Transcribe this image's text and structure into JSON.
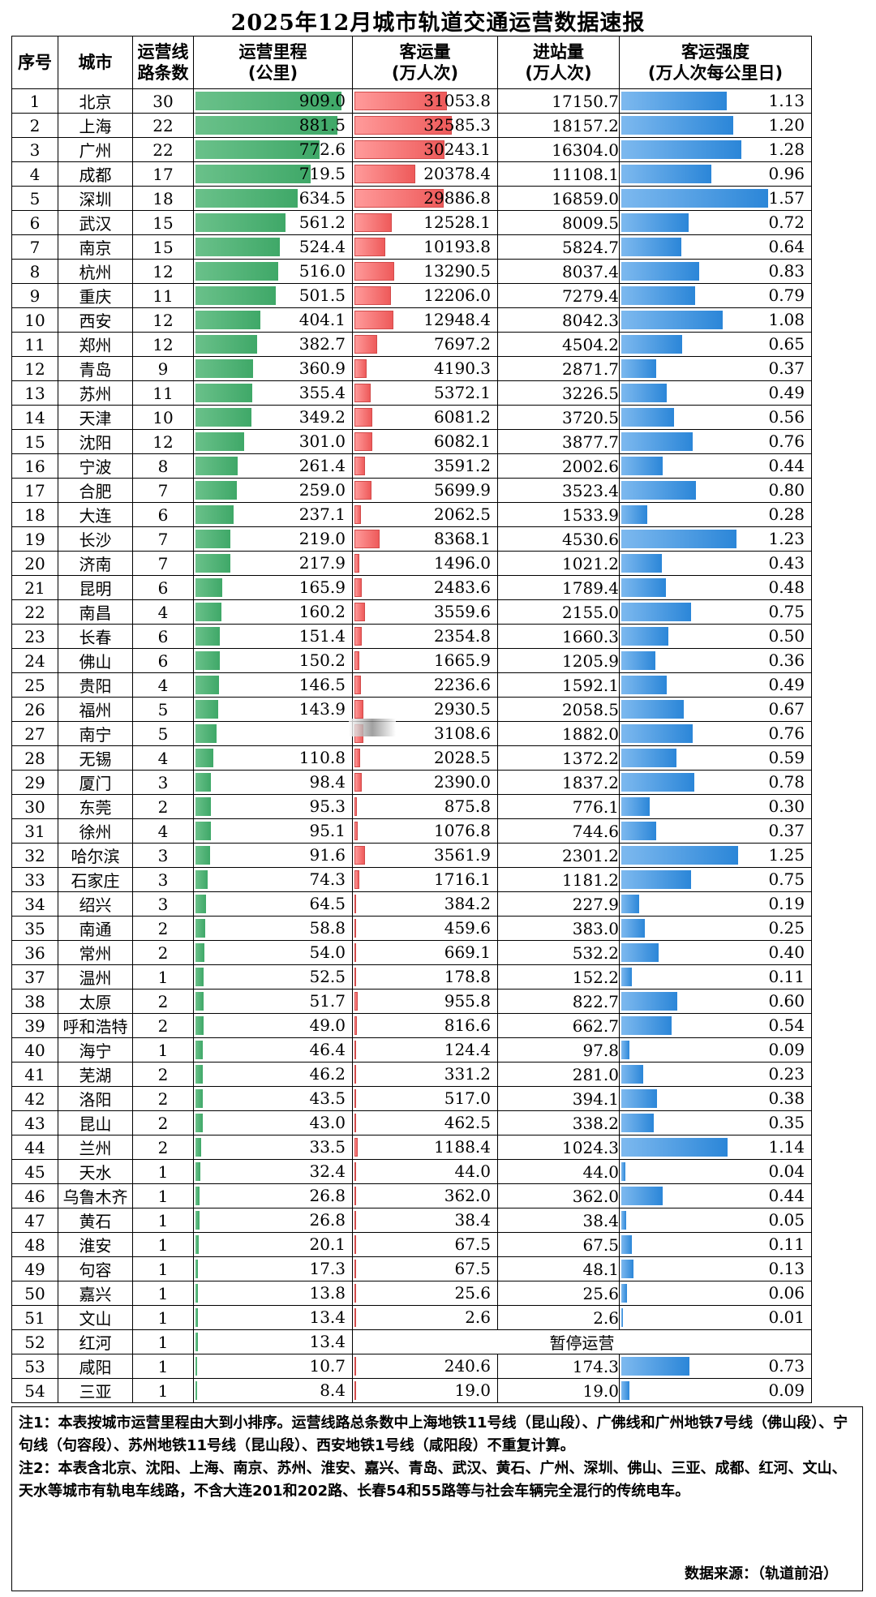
{
  "title": "2025年12月城市轨道交通运营数据速报",
  "headers": {
    "idx": "序号",
    "city": "城市",
    "lines_1": "运营线",
    "lines_2": "路条数",
    "mileage_1": "运营里程",
    "mileage_2": "(公里)",
    "ridership_1": "客运量",
    "ridership_2": "(万人次)",
    "entries_1": "进站量",
    "entries_2": "(万人次)",
    "intensity_1": "客运强度",
    "intensity_2": "(万人次每公里日)"
  },
  "suspended_text": "暂停运营",
  "colors": {
    "mileage_bar": "#4cae6f",
    "ridership_bar": "#ee5a5a",
    "intensity_bar": "#2b86d8"
  },
  "rows": [
    {
      "idx": "1",
      "city": "北京",
      "lines": "30",
      "mileage": "909.0",
      "ridership": "31053.8",
      "entries": "17150.7",
      "intensity": "1.13"
    },
    {
      "idx": "2",
      "city": "上海",
      "lines": "22",
      "mileage": "881.5",
      "ridership": "32585.3",
      "entries": "18157.2",
      "intensity": "1.20"
    },
    {
      "idx": "3",
      "city": "广州",
      "lines": "22",
      "mileage": "772.6",
      "ridership": "30243.1",
      "entries": "16304.0",
      "intensity": "1.28"
    },
    {
      "idx": "4",
      "city": "成都",
      "lines": "17",
      "mileage": "719.5",
      "ridership": "20378.4",
      "entries": "11108.1",
      "intensity": "0.96"
    },
    {
      "idx": "5",
      "city": "深圳",
      "lines": "18",
      "mileage": "634.5",
      "ridership": "29886.8",
      "entries": "16859.0",
      "intensity": "1.57"
    },
    {
      "idx": "6",
      "city": "武汉",
      "lines": "15",
      "mileage": "561.2",
      "ridership": "12528.1",
      "entries": "8009.5",
      "intensity": "0.72"
    },
    {
      "idx": "7",
      "city": "南京",
      "lines": "15",
      "mileage": "524.4",
      "ridership": "10193.8",
      "entries": "5824.7",
      "intensity": "0.64"
    },
    {
      "idx": "8",
      "city": "杭州",
      "lines": "12",
      "mileage": "516.0",
      "ridership": "13290.5",
      "entries": "8037.4",
      "intensity": "0.83"
    },
    {
      "idx": "9",
      "city": "重庆",
      "lines": "11",
      "mileage": "501.5",
      "ridership": "12206.0",
      "entries": "7279.4",
      "intensity": "0.79"
    },
    {
      "idx": "10",
      "city": "西安",
      "lines": "12",
      "mileage": "404.1",
      "ridership": "12948.4",
      "entries": "8042.3",
      "intensity": "1.08"
    },
    {
      "idx": "11",
      "city": "郑州",
      "lines": "12",
      "mileage": "382.7",
      "ridership": "7697.2",
      "entries": "4504.2",
      "intensity": "0.65"
    },
    {
      "idx": "12",
      "city": "青岛",
      "lines": "9",
      "mileage": "360.9",
      "ridership": "4190.3",
      "entries": "2871.7",
      "intensity": "0.37"
    },
    {
      "idx": "13",
      "city": "苏州",
      "lines": "11",
      "mileage": "355.4",
      "ridership": "5372.1",
      "entries": "3226.5",
      "intensity": "0.49"
    },
    {
      "idx": "14",
      "city": "天津",
      "lines": "10",
      "mileage": "349.2",
      "ridership": "6081.2",
      "entries": "3720.5",
      "intensity": "0.56"
    },
    {
      "idx": "15",
      "city": "沈阳",
      "lines": "12",
      "mileage": "301.0",
      "ridership": "6082.1",
      "entries": "3877.7",
      "intensity": "0.76"
    },
    {
      "idx": "16",
      "city": "宁波",
      "lines": "8",
      "mileage": "261.4",
      "ridership": "3591.2",
      "entries": "2002.6",
      "intensity": "0.44"
    },
    {
      "idx": "17",
      "city": "合肥",
      "lines": "7",
      "mileage": "259.0",
      "ridership": "5699.9",
      "entries": "3523.4",
      "intensity": "0.80"
    },
    {
      "idx": "18",
      "city": "大连",
      "lines": "6",
      "mileage": "237.1",
      "ridership": "2062.5",
      "entries": "1533.9",
      "intensity": "0.28"
    },
    {
      "idx": "19",
      "city": "长沙",
      "lines": "7",
      "mileage": "219.0",
      "ridership": "8368.1",
      "entries": "4530.6",
      "intensity": "1.23"
    },
    {
      "idx": "20",
      "city": "济南",
      "lines": "7",
      "mileage": "217.9",
      "ridership": "1496.0",
      "entries": "1021.2",
      "intensity": "0.43"
    },
    {
      "idx": "21",
      "city": "昆明",
      "lines": "6",
      "mileage": "165.9",
      "ridership": "2483.6",
      "entries": "1789.4",
      "intensity": "0.48"
    },
    {
      "idx": "22",
      "city": "南昌",
      "lines": "4",
      "mileage": "160.2",
      "ridership": "3559.6",
      "entries": "2155.0",
      "intensity": "0.75"
    },
    {
      "idx": "23",
      "city": "长春",
      "lines": "6",
      "mileage": "151.4",
      "ridership": "2354.8",
      "entries": "1660.3",
      "intensity": "0.50"
    },
    {
      "idx": "24",
      "city": "佛山",
      "lines": "6",
      "mileage": "150.2",
      "ridership": "1665.9",
      "entries": "1205.9",
      "intensity": "0.36"
    },
    {
      "idx": "25",
      "city": "贵阳",
      "lines": "4",
      "mileage": "146.5",
      "ridership": "2236.6",
      "entries": "1592.1",
      "intensity": "0.49"
    },
    {
      "idx": "26",
      "city": "福州",
      "lines": "5",
      "mileage": "143.9",
      "ridership": "2930.5",
      "entries": "2058.5",
      "intensity": "0.67"
    },
    {
      "idx": "27",
      "city": "南宁",
      "lines": "5",
      "mileage": "",
      "ridership": "3108.6",
      "entries": "1882.0",
      "intensity": "0.76"
    },
    {
      "idx": "28",
      "city": "无锡",
      "lines": "4",
      "mileage": "110.8",
      "ridership": "2028.5",
      "entries": "1372.2",
      "intensity": "0.59"
    },
    {
      "idx": "29",
      "city": "厦门",
      "lines": "3",
      "mileage": "98.4",
      "ridership": "2390.0",
      "entries": "1837.2",
      "intensity": "0.78"
    },
    {
      "idx": "30",
      "city": "东莞",
      "lines": "2",
      "mileage": "95.3",
      "ridership": "875.8",
      "entries": "776.1",
      "intensity": "0.30"
    },
    {
      "idx": "31",
      "city": "徐州",
      "lines": "4",
      "mileage": "95.1",
      "ridership": "1076.8",
      "entries": "744.6",
      "intensity": "0.37"
    },
    {
      "idx": "32",
      "city": "哈尔滨",
      "lines": "3",
      "mileage": "91.6",
      "ridership": "3561.9",
      "entries": "2301.2",
      "intensity": "1.25"
    },
    {
      "idx": "33",
      "city": "石家庄",
      "lines": "3",
      "mileage": "74.3",
      "ridership": "1716.1",
      "entries": "1181.2",
      "intensity": "0.75"
    },
    {
      "idx": "34",
      "city": "绍兴",
      "lines": "3",
      "mileage": "64.5",
      "ridership": "384.2",
      "entries": "227.9",
      "intensity": "0.19"
    },
    {
      "idx": "35",
      "city": "南通",
      "lines": "2",
      "mileage": "58.8",
      "ridership": "459.6",
      "entries": "383.0",
      "intensity": "0.25"
    },
    {
      "idx": "36",
      "city": "常州",
      "lines": "2",
      "mileage": "54.0",
      "ridership": "669.1",
      "entries": "532.2",
      "intensity": "0.40"
    },
    {
      "idx": "37",
      "city": "温州",
      "lines": "1",
      "mileage": "52.5",
      "ridership": "178.8",
      "entries": "152.2",
      "intensity": "0.11"
    },
    {
      "idx": "38",
      "city": "太原",
      "lines": "2",
      "mileage": "51.7",
      "ridership": "955.8",
      "entries": "822.7",
      "intensity": "0.60"
    },
    {
      "idx": "39",
      "city": "呼和浩特",
      "lines": "2",
      "mileage": "49.0",
      "ridership": "816.6",
      "entries": "662.7",
      "intensity": "0.54"
    },
    {
      "idx": "40",
      "city": "海宁",
      "lines": "1",
      "mileage": "46.4",
      "ridership": "124.4",
      "entries": "97.8",
      "intensity": "0.09"
    },
    {
      "idx": "41",
      "city": "芜湖",
      "lines": "2",
      "mileage": "46.2",
      "ridership": "331.2",
      "entries": "281.0",
      "intensity": "0.23"
    },
    {
      "idx": "42",
      "city": "洛阳",
      "lines": "2",
      "mileage": "43.5",
      "ridership": "517.0",
      "entries": "394.1",
      "intensity": "0.38"
    },
    {
      "idx": "43",
      "city": "昆山",
      "lines": "2",
      "mileage": "43.0",
      "ridership": "462.5",
      "entries": "338.2",
      "intensity": "0.35"
    },
    {
      "idx": "44",
      "city": "兰州",
      "lines": "2",
      "mileage": "33.5",
      "ridership": "1188.4",
      "entries": "1024.3",
      "intensity": "1.14"
    },
    {
      "idx": "45",
      "city": "天水",
      "lines": "1",
      "mileage": "32.4",
      "ridership": "44.0",
      "entries": "44.0",
      "intensity": "0.04"
    },
    {
      "idx": "46",
      "city": "乌鲁木齐",
      "lines": "1",
      "mileage": "26.8",
      "ridership": "362.0",
      "entries": "362.0",
      "intensity": "0.44"
    },
    {
      "idx": "47",
      "city": "黄石",
      "lines": "1",
      "mileage": "26.8",
      "ridership": "38.4",
      "entries": "38.4",
      "intensity": "0.05"
    },
    {
      "idx": "48",
      "city": "淮安",
      "lines": "1",
      "mileage": "20.1",
      "ridership": "67.5",
      "entries": "67.5",
      "intensity": "0.11"
    },
    {
      "idx": "49",
      "city": "句容",
      "lines": "1",
      "mileage": "17.3",
      "ridership": "67.5",
      "entries": "48.1",
      "intensity": "0.13"
    },
    {
      "idx": "50",
      "city": "嘉兴",
      "lines": "1",
      "mileage": "13.8",
      "ridership": "25.6",
      "entries": "25.6",
      "intensity": "0.06"
    },
    {
      "idx": "51",
      "city": "文山",
      "lines": "1",
      "mileage": "13.4",
      "ridership": "2.6",
      "entries": "2.6",
      "intensity": "0.01"
    },
    {
      "idx": "52",
      "city": "红河",
      "lines": "1",
      "mileage": "13.4",
      "ridership": "",
      "entries": "",
      "intensity": "",
      "suspended": true
    },
    {
      "idx": "53",
      "city": "咸阳",
      "lines": "1",
      "mileage": "10.7",
      "ridership": "240.6",
      "entries": "174.3",
      "intensity": "0.73"
    },
    {
      "idx": "54",
      "city": "三亚",
      "lines": "1",
      "mileage": "8.4",
      "ridership": "19.0",
      "entries": "19.0",
      "intensity": "0.09"
    }
  ],
  "notes": {
    "note1": "注1：本表按城市运营里程由大到小排序。运营线路总条数中上海地铁11号线（昆山段）、广佛线和广州地铁7号线（佛山段）、宁句线（句容段）、苏州地铁11号线（昆山段）、西安地铁1号线（咸阳段）不重复计算。",
    "note2": "注2：本表含北京、沈阳、上海、南京、苏州、淮安、嘉兴、青岛、武汉、黄石、广州、深圳、佛山、三亚、成都、红河、文山、天水等城市有轨电车线路，不含大连201和202路、长春54和55路等与社会车辆完全混行的传统电车。",
    "source": "数据来源：（轨道前沿）"
  }
}
